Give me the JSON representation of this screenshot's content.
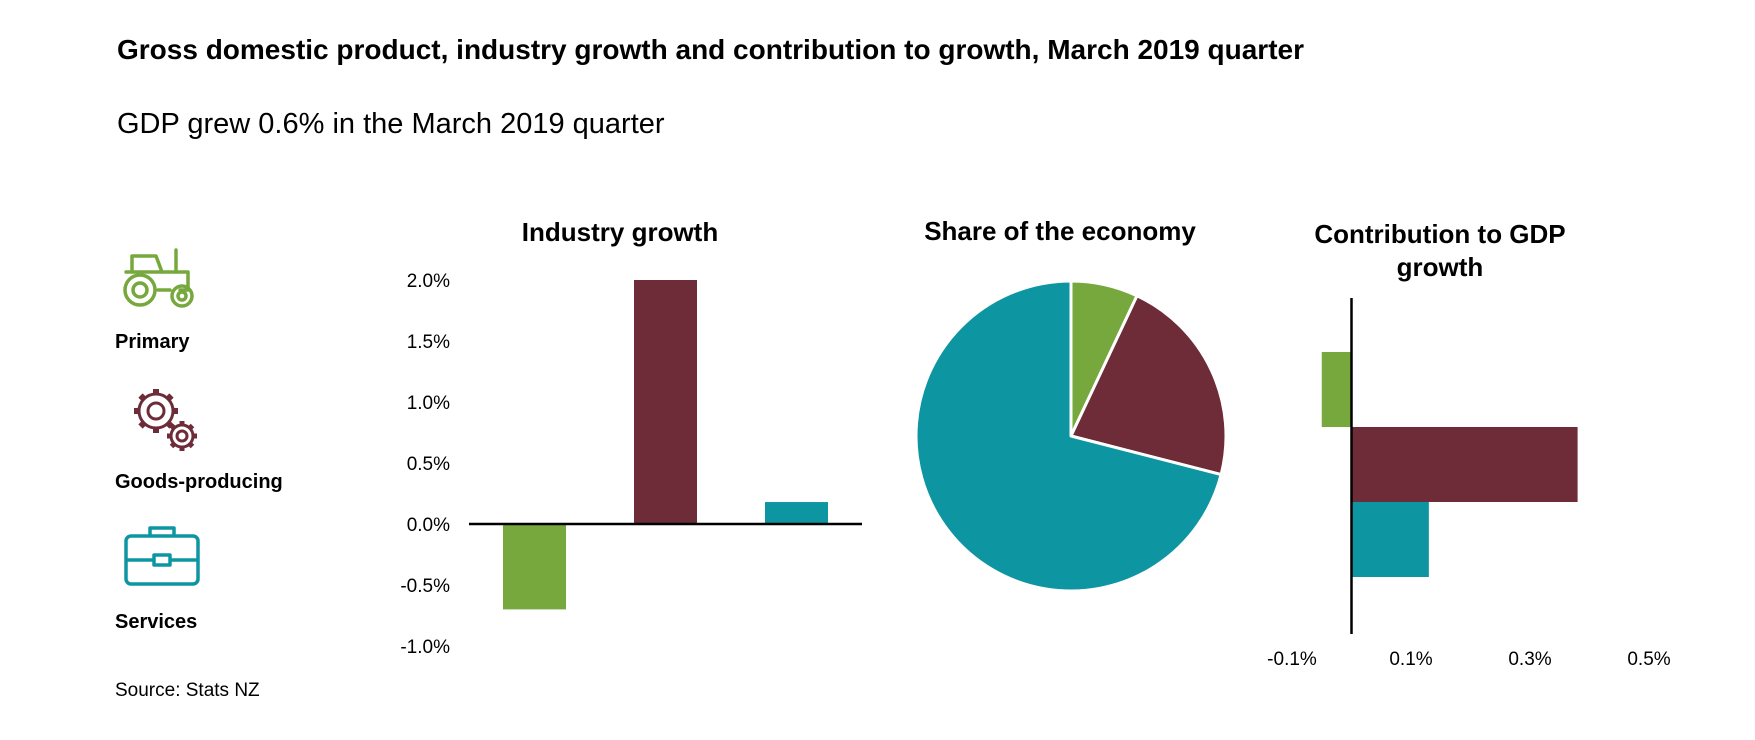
{
  "header": {
    "title": "Gross domestic product, industry growth and contribution to growth, March 2019 quarter",
    "subtitle": "GDP grew 0.6% in the March 2019 quarter"
  },
  "legend": {
    "items": [
      {
        "label": "Primary",
        "icon": "tractor-icon",
        "color": "#76A83E"
      },
      {
        "label": "Goods-producing",
        "icon": "gears-icon",
        "color": "#6E2C38"
      },
      {
        "label": "Services",
        "icon": "briefcase-icon",
        "color": "#0E95A2"
      }
    ]
  },
  "source": "Source: Stats NZ",
  "chart_data": [
    {
      "type": "bar",
      "title": "Industry growth",
      "categories": [
        "Primary",
        "Goods-producing",
        "Services"
      ],
      "values": [
        -0.7,
        2.0,
        0.18
      ],
      "colors": [
        "#76A83E",
        "#6E2C38",
        "#0E95A2"
      ],
      "ylim": [
        -1.0,
        2.0
      ],
      "yticks": [
        2.0,
        1.5,
        1.0,
        0.5,
        0.0,
        -0.5,
        -1.0
      ],
      "ytick_labels": [
        "2.0%",
        "1.5%",
        "1.0%",
        "0.5%",
        "0.0%",
        "-0.5%",
        "-1.0%"
      ],
      "xlabel": "",
      "ylabel": ""
    },
    {
      "type": "pie",
      "title": "Share of the economy",
      "categories": [
        "Primary",
        "Goods-producing",
        "Services"
      ],
      "values": [
        7,
        22,
        71
      ],
      "colors": [
        "#76A83E",
        "#6E2C38",
        "#0E95A2"
      ]
    },
    {
      "type": "bar",
      "orientation": "horizontal",
      "title": "Contribution to GDP growth",
      "categories": [
        "Primary",
        "Goods-producing",
        "Services"
      ],
      "values": [
        -0.05,
        0.38,
        0.13
      ],
      "colors": [
        "#76A83E",
        "#6E2C38",
        "#0E95A2"
      ],
      "xlim": [
        -0.1,
        0.5
      ],
      "xticks": [
        -0.1,
        0.1,
        0.3,
        0.5
      ],
      "xtick_labels": [
        "-0.1%",
        "0.1%",
        "0.3%",
        "0.5%"
      ]
    }
  ]
}
